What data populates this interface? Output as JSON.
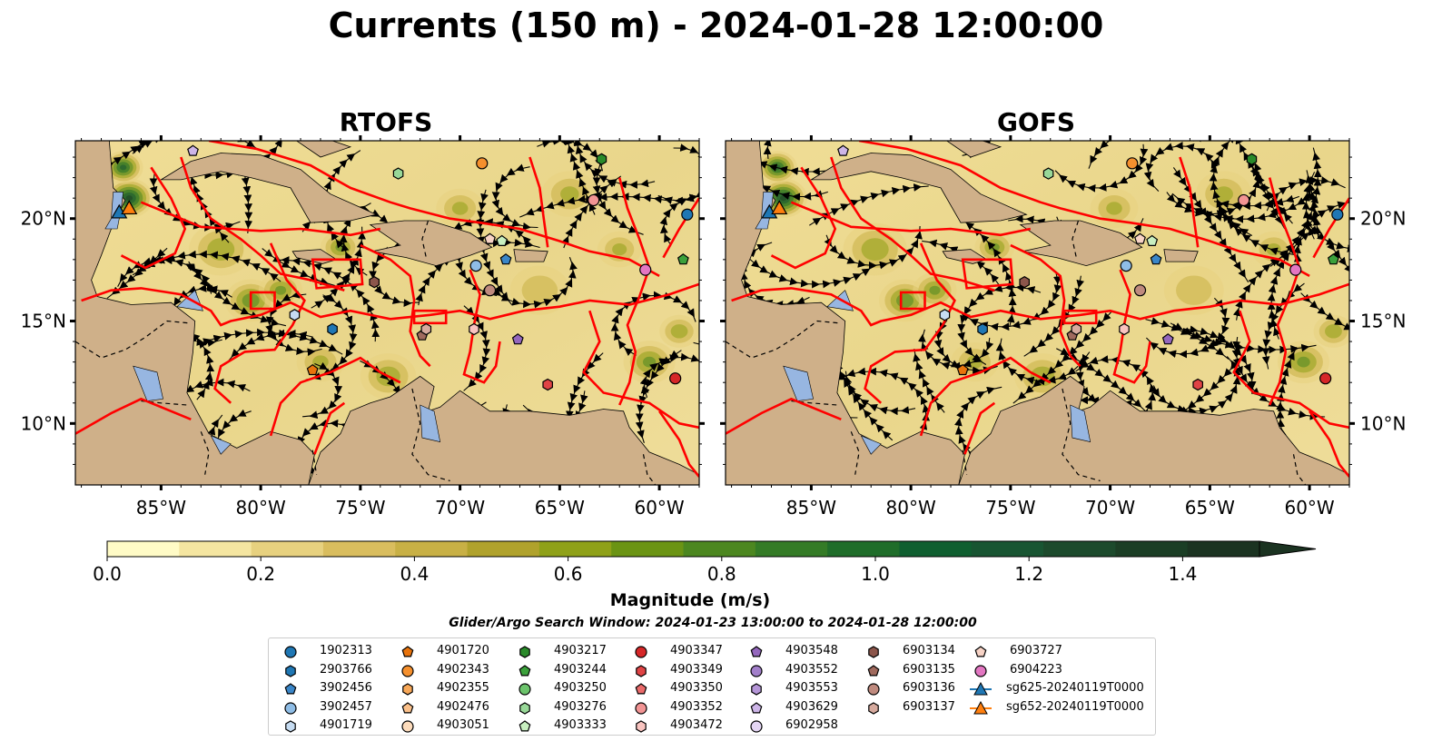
{
  "title": "Currents (150 m) - 2024-01-28 12:00:00",
  "panels": [
    {
      "title": "RTOFS",
      "side": "left"
    },
    {
      "title": "GOFS",
      "side": "right"
    }
  ],
  "map": {
    "extent": {
      "lon_min": -89.3,
      "lon_max": -58.0,
      "lat_min": 7.0,
      "lat_max": 23.8
    },
    "lon_ticks": [
      -85,
      -80,
      -75,
      -70,
      -65,
      -60
    ],
    "lon_tick_labels": [
      "85°W",
      "80°W",
      "75°W",
      "70°W",
      "65°W",
      "60°W"
    ],
    "lat_ticks": [
      10,
      15,
      20
    ],
    "lat_tick_labels": [
      "10°N",
      "15°N",
      "20°N"
    ],
    "colors": {
      "land": "#cfb089",
      "lakes": "#97b6e1",
      "boundaries": "#ff0000",
      "streamlines": "#000000",
      "country_borders": "#000000",
      "rivers": "#a0b4cc"
    }
  },
  "colorbar": {
    "label": "Magnitude (m/s)",
    "min": 0.0,
    "max": 1.5,
    "extend": "max",
    "ticks": [
      0.0,
      0.2,
      0.4,
      0.6,
      0.8,
      1.0,
      1.2,
      1.4
    ],
    "tick_labels": [
      "0.0",
      "0.2",
      "0.4",
      "0.6",
      "0.8",
      "1.0",
      "1.2",
      "1.4"
    ],
    "bins": [
      "#fffbc6",
      "#f5e6a1",
      "#e7d17f",
      "#d9bd5e",
      "#c8b045",
      "#b0a22c",
      "#8fa118",
      "#6b9414",
      "#4c8720",
      "#347b26",
      "#1f6d2a",
      "#0f5f30",
      "#185532",
      "#1c4a2c",
      "#1b3e25",
      "#1b3321"
    ]
  },
  "search_window": "Glider/Argo Search Window: 2024-01-23 13:00:00 to 2024-01-28 12:00:00",
  "legend": {
    "columns": [
      [
        {
          "label": "1902313",
          "marker": "circle",
          "color": "#1f77b4"
        },
        {
          "label": "2903766",
          "marker": "hexagon",
          "color": "#1f77b4"
        },
        {
          "label": "3902456",
          "marker": "pentagon",
          "color": "#3a86c8"
        },
        {
          "label": "3902457",
          "marker": "circle",
          "color": "#8fbde6"
        },
        {
          "label": "4901719",
          "marker": "hexagon",
          "color": "#c6dcf2"
        }
      ],
      [
        {
          "label": "4901720",
          "marker": "pentagon",
          "color": "#e8730c"
        },
        {
          "label": "4902343",
          "marker": "circle",
          "color": "#f5902e"
        },
        {
          "label": "4902355",
          "marker": "hexagon",
          "color": "#f8a858"
        },
        {
          "label": "4902476",
          "marker": "pentagon",
          "color": "#fbc08a"
        },
        {
          "label": "4903051",
          "marker": "circle",
          "color": "#fddcbc"
        }
      ],
      [
        {
          "label": "4903217",
          "marker": "hexagon",
          "color": "#2a8a2a"
        },
        {
          "label": "4903244",
          "marker": "pentagon",
          "color": "#3ba13b"
        },
        {
          "label": "4903250",
          "marker": "circle",
          "color": "#6cc46c"
        },
        {
          "label": "4903276",
          "marker": "hexagon",
          "color": "#98d898"
        },
        {
          "label": "4903333",
          "marker": "pentagon",
          "color": "#c8efc0"
        }
      ],
      [
        {
          "label": "4903347",
          "marker": "circle",
          "color": "#d62728"
        },
        {
          "label": "4903349",
          "marker": "hexagon",
          "color": "#e04445"
        },
        {
          "label": "4903350",
          "marker": "pentagon",
          "color": "#ea6a6a"
        },
        {
          "label": "4903352",
          "marker": "circle",
          "color": "#f29494"
        },
        {
          "label": "4903472",
          "marker": "hexagon",
          "color": "#f9c4c0"
        }
      ],
      [
        {
          "label": "4903548",
          "marker": "pentagon",
          "color": "#9467bd"
        },
        {
          "label": "4903552",
          "marker": "circle",
          "color": "#a27fca"
        },
        {
          "label": "4903553",
          "marker": "hexagon",
          "color": "#b596d8"
        },
        {
          "label": "4903629",
          "marker": "pentagon",
          "color": "#cdb5e8"
        },
        {
          "label": "6902958",
          "marker": "circle",
          "color": "#e4d6f4"
        }
      ],
      [
        {
          "label": "6903134",
          "marker": "hexagon",
          "color": "#8c564b"
        },
        {
          "label": "6903135",
          "marker": "pentagon",
          "color": "#a06a5e"
        },
        {
          "label": "6903136",
          "marker": "circle",
          "color": "#bf8a7e"
        },
        {
          "label": "6903137",
          "marker": "hexagon",
          "color": "#d6aa9e"
        }
      ],
      [
        {
          "label": "6903727",
          "marker": "pentagon",
          "color": "#f7d3c6"
        },
        {
          "label": "6904223",
          "marker": "circle",
          "color": "#e377c2"
        },
        {
          "label": "sg625-20240119T0000",
          "marker": "triangle-line",
          "color": "#1f77b4"
        },
        {
          "label": "sg652-20240119T0000",
          "marker": "triangle-line",
          "color": "#ff7f0e"
        }
      ]
    ]
  },
  "platforms": [
    {
      "label": "1902313",
      "lon": -58.6,
      "lat": 20.2
    },
    {
      "label": "2903766",
      "lon": -76.4,
      "lat": 14.6
    },
    {
      "label": "3902456",
      "lon": -67.7,
      "lat": 18.0
    },
    {
      "label": "3902457",
      "lon": -69.2,
      "lat": 17.7
    },
    {
      "label": "4901719",
      "lon": -78.3,
      "lat": 15.3
    },
    {
      "label": "4901720",
      "lon": -77.4,
      "lat": 12.6
    },
    {
      "label": "4902343",
      "lon": -68.9,
      "lat": 22.7
    },
    {
      "label": "4903217",
      "lon": -62.9,
      "lat": 22.9
    },
    {
      "label": "4903244",
      "lon": -58.8,
      "lat": 18.0
    },
    {
      "label": "4903276",
      "lon": -73.1,
      "lat": 22.2
    },
    {
      "label": "4903333",
      "lon": -67.9,
      "lat": 18.9
    },
    {
      "label": "4903347",
      "lon": -59.2,
      "lat": 12.2
    },
    {
      "label": "4903349",
      "lon": -65.6,
      "lat": 11.9
    },
    {
      "label": "4903352",
      "lon": -63.3,
      "lat": 20.9
    },
    {
      "label": "4903472",
      "lon": -69.3,
      "lat": 14.6
    },
    {
      "label": "4903548",
      "lon": -67.1,
      "lat": 14.1
    },
    {
      "label": "4903629",
      "lon": -83.4,
      "lat": 23.3
    },
    {
      "label": "6903134",
      "lon": -74.3,
      "lat": 16.9
    },
    {
      "label": "6903135",
      "lon": -71.9,
      "lat": 14.3
    },
    {
      "label": "6903136",
      "lon": -68.5,
      "lat": 16.5
    },
    {
      "label": "6903137",
      "lon": -71.7,
      "lat": 14.6
    },
    {
      "label": "6903727",
      "lon": -68.5,
      "lat": 19.0
    },
    {
      "label": "6904223",
      "lon": -60.7,
      "lat": 17.5
    },
    {
      "label": "sg625-20240119T0000",
      "lon": -87.1,
      "lat": 20.3
    },
    {
      "label": "sg652-20240119T0000",
      "lon": -86.6,
      "lat": 20.5
    }
  ]
}
